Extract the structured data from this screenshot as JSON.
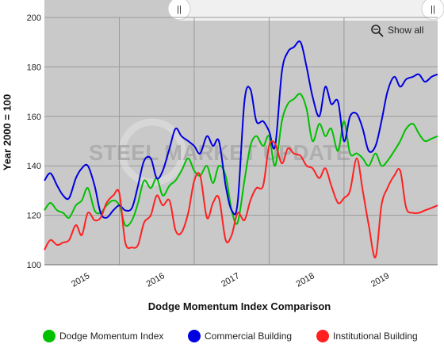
{
  "chart_data": {
    "type": "line",
    "title": "Dodge Momentum Index Comparison",
    "xlabel": "",
    "ylabel": "Year 2000 = 100",
    "ylim": [
      100,
      200
    ],
    "yticks": [
      100,
      120,
      140,
      160,
      180,
      200
    ],
    "xlim": [
      2014.5,
      2019.75
    ],
    "x_tick_labels": [
      "2015",
      "2016",
      "2017",
      "2018",
      "2019"
    ],
    "grid": true,
    "legend": "bottom",
    "x": [
      2014.5,
      2014.58,
      2014.67,
      2014.75,
      2014.83,
      2014.92,
      2015.0,
      2015.08,
      2015.17,
      2015.25,
      2015.33,
      2015.42,
      2015.5,
      2015.58,
      2015.67,
      2015.75,
      2015.83,
      2015.92,
      2016.0,
      2016.08,
      2016.17,
      2016.25,
      2016.33,
      2016.42,
      2016.5,
      2016.58,
      2016.67,
      2016.75,
      2016.83,
      2016.92,
      2017.0,
      2017.08,
      2017.17,
      2017.25,
      2017.33,
      2017.42,
      2017.5,
      2017.58,
      2017.67,
      2017.75,
      2017.83,
      2017.92,
      2018.0,
      2018.08,
      2018.17,
      2018.25,
      2018.33,
      2018.42,
      2018.5,
      2018.58,
      2018.67,
      2018.75,
      2018.83,
      2018.92,
      2019.0,
      2019.08,
      2019.17,
      2019.25,
      2019.33,
      2019.42,
      2019.5,
      2019.58,
      2019.67,
      2019.75
    ],
    "series": [
      {
        "name": "Dodge Momentum Index",
        "color": "#00c000",
        "values": [
          122,
          125,
          122,
          121,
          119,
          124,
          126,
          131,
          122,
          121,
          124,
          126,
          124,
          116,
          118,
          125,
          134,
          131,
          135,
          128,
          132,
          134,
          138,
          143,
          138,
          136,
          140,
          133,
          140,
          136,
          122,
          117,
          134,
          148,
          152,
          148,
          152,
          140,
          158,
          165,
          167,
          169,
          163,
          150,
          157,
          152,
          155,
          146,
          158,
          145,
          145,
          143,
          140,
          145,
          140,
          142,
          146,
          150,
          155,
          157,
          153,
          150,
          151,
          152
        ]
      },
      {
        "name": "Commercial Building",
        "color": "#0000e0",
        "values": [
          134,
          137,
          132,
          128,
          127,
          135,
          139,
          140,
          132,
          121,
          119,
          122,
          124,
          122,
          123,
          132,
          142,
          143,
          135,
          138,
          147,
          155,
          152,
          150,
          148,
          145,
          152,
          148,
          150,
          132,
          122,
          125,
          166,
          171,
          158,
          158,
          154,
          148,
          178,
          186,
          188,
          190,
          180,
          168,
          160,
          172,
          165,
          166,
          150,
          160,
          161,
          155,
          146,
          148,
          158,
          170,
          176,
          172,
          175,
          176,
          177,
          174,
          176,
          177
        ]
      },
      {
        "name": "Institutional Building",
        "color": "#ff2020",
        "values": [
          106,
          110,
          108,
          109,
          110,
          116,
          112,
          121,
          118,
          119,
          125,
          128,
          129,
          109,
          107,
          108,
          117,
          120,
          128,
          124,
          126,
          114,
          113,
          121,
          134,
          136,
          119,
          125,
          127,
          110,
          112,
          121,
          118,
          126,
          131,
          132,
          148,
          149,
          141,
          147,
          145,
          144,
          140,
          139,
          135,
          139,
          132,
          125,
          127,
          130,
          143,
          130,
          116,
          103,
          124,
          131,
          136,
          138,
          123,
          121,
          121,
          122,
          123,
          124
        ]
      }
    ]
  },
  "ui": {
    "show_all_label": "Show all",
    "watermark": "STEEL MARKET UPDATE",
    "navigator_handle_left": "||",
    "navigator_handle_right": "||"
  },
  "colors": {
    "plot_background": "#c9c9c9",
    "grid": "#9a9a9a",
    "navigator": "#f0f0f0"
  }
}
